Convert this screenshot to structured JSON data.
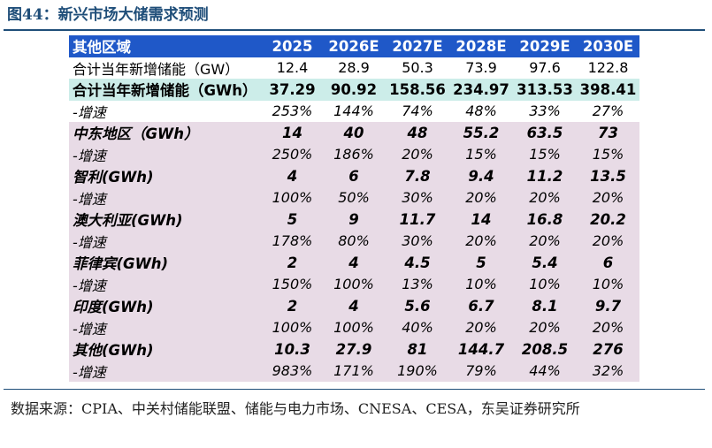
{
  "figure": {
    "title": "图44：新兴市场大储需求预测"
  },
  "table": {
    "header": [
      "其他区域",
      "2025",
      "2026E",
      "2027E",
      "2028E",
      "2029E",
      "2030E"
    ],
    "rows": [
      {
        "style": "plain",
        "cells": [
          "合计当年新增储能（GW）",
          "12.4",
          "28.9",
          "50.3",
          "73.9",
          "97.6",
          "122.8"
        ]
      },
      {
        "style": "total",
        "cells": [
          "合计当年新增储能（GWh）",
          "37.29",
          "90.92",
          "158.56",
          "234.97",
          "313.53",
          "398.41"
        ]
      },
      {
        "style": "growth",
        "cells": [
          "-增速",
          "253%",
          "144%",
          "74%",
          "48%",
          "33%",
          "27%"
        ]
      },
      {
        "style": "region",
        "cells": [
          "中东地区（GWh）",
          "14",
          "40",
          "48",
          "55.2",
          "63.5",
          "73"
        ]
      },
      {
        "style": "rgrowth",
        "cells": [
          "-增速",
          "250%",
          "186%",
          "20%",
          "15%",
          "15%",
          "15%"
        ]
      },
      {
        "style": "region",
        "cells": [
          "智利(GWh)",
          "4",
          "6",
          "7.8",
          "9.4",
          "11.2",
          "13.5"
        ]
      },
      {
        "style": "rgrowth",
        "cells": [
          "-增速",
          "100%",
          "50%",
          "30%",
          "20%",
          "20%",
          "20%"
        ]
      },
      {
        "style": "region",
        "cells": [
          "澳大利亚(GWh)",
          "5",
          "9",
          "11.7",
          "14",
          "16.8",
          "20.2"
        ]
      },
      {
        "style": "rgrowth",
        "cells": [
          "-增速",
          "178%",
          "80%",
          "30%",
          "20%",
          "20%",
          "20%"
        ]
      },
      {
        "style": "region",
        "cells": [
          "菲律宾(GWh)",
          "2",
          "4",
          "4.5",
          "5",
          "5.4",
          "6"
        ]
      },
      {
        "style": "rgrowth",
        "cells": [
          "-增速",
          "150%",
          "100%",
          "13%",
          "10%",
          "10%",
          "10%"
        ]
      },
      {
        "style": "region",
        "cells": [
          "印度(GWh)",
          "2",
          "4",
          "5.6",
          "6.7",
          "8.1",
          "9.7"
        ]
      },
      {
        "style": "rgrowth",
        "cells": [
          "-增速",
          "100%",
          "100%",
          "40%",
          "20%",
          "20%",
          "20%"
        ]
      },
      {
        "style": "region",
        "cells": [
          "其他(GWh)",
          "10.3",
          "27.9",
          "81",
          "144.7",
          "208.5",
          "276"
        ]
      },
      {
        "style": "rgrowth",
        "cells": [
          "-增速",
          "983%",
          "171%",
          "190%",
          "79%",
          "44%",
          "32%"
        ]
      }
    ]
  },
  "source": "数据来源：CPIA、中关村储能联盟、储能与电力市场、CNESA、CESA，东吴证券研究所"
}
